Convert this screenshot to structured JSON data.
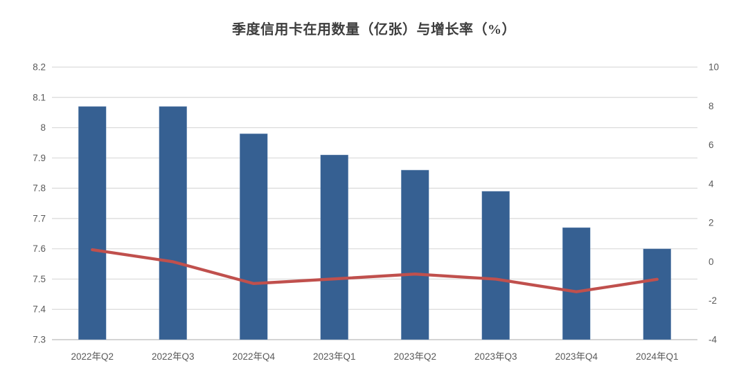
{
  "chart_data": {
    "type": "combo",
    "title": "季度信用卡在用数量（亿张）与增长率（%）",
    "categories": [
      "2022年Q2",
      "2022年Q3",
      "2022年Q4",
      "2023年Q1",
      "2023年Q2",
      "2023年Q3",
      "2023年Q4",
      "2024年Q1"
    ],
    "series": [
      {
        "id": "cards-in-use",
        "type": "bar",
        "axis": "left",
        "color": "#366092",
        "values": [
          8.07,
          8.07,
          7.98,
          7.91,
          7.86,
          7.79,
          7.67,
          7.6
        ]
      },
      {
        "id": "growth-rate",
        "type": "line",
        "axis": "right",
        "color": "#C0504D",
        "values": [
          0.62,
          0.0,
          -1.12,
          -0.88,
          -0.63,
          -0.89,
          -1.54,
          -0.9
        ]
      }
    ],
    "left_axis": {
      "min": 7.3,
      "max": 8.2,
      "step": 0.1,
      "tick_labels": [
        "8.2",
        "8.1",
        "8",
        "7.9",
        "7.8",
        "7.7",
        "7.6",
        "7.5",
        "7.4",
        "7.3"
      ]
    },
    "right_axis": {
      "min": -4,
      "max": 10,
      "step": 2,
      "tick_labels": [
        "10",
        "8",
        "6",
        "4",
        "2",
        "0",
        "-2",
        "-4"
      ]
    },
    "grid": true,
    "legend": "none",
    "colors": {
      "grid_line": "#D9D9D9",
      "axis_line": "#C6C6C6",
      "tick_text": "#595959",
      "title_text": "#3d3d3d",
      "background": "#ffffff"
    }
  }
}
